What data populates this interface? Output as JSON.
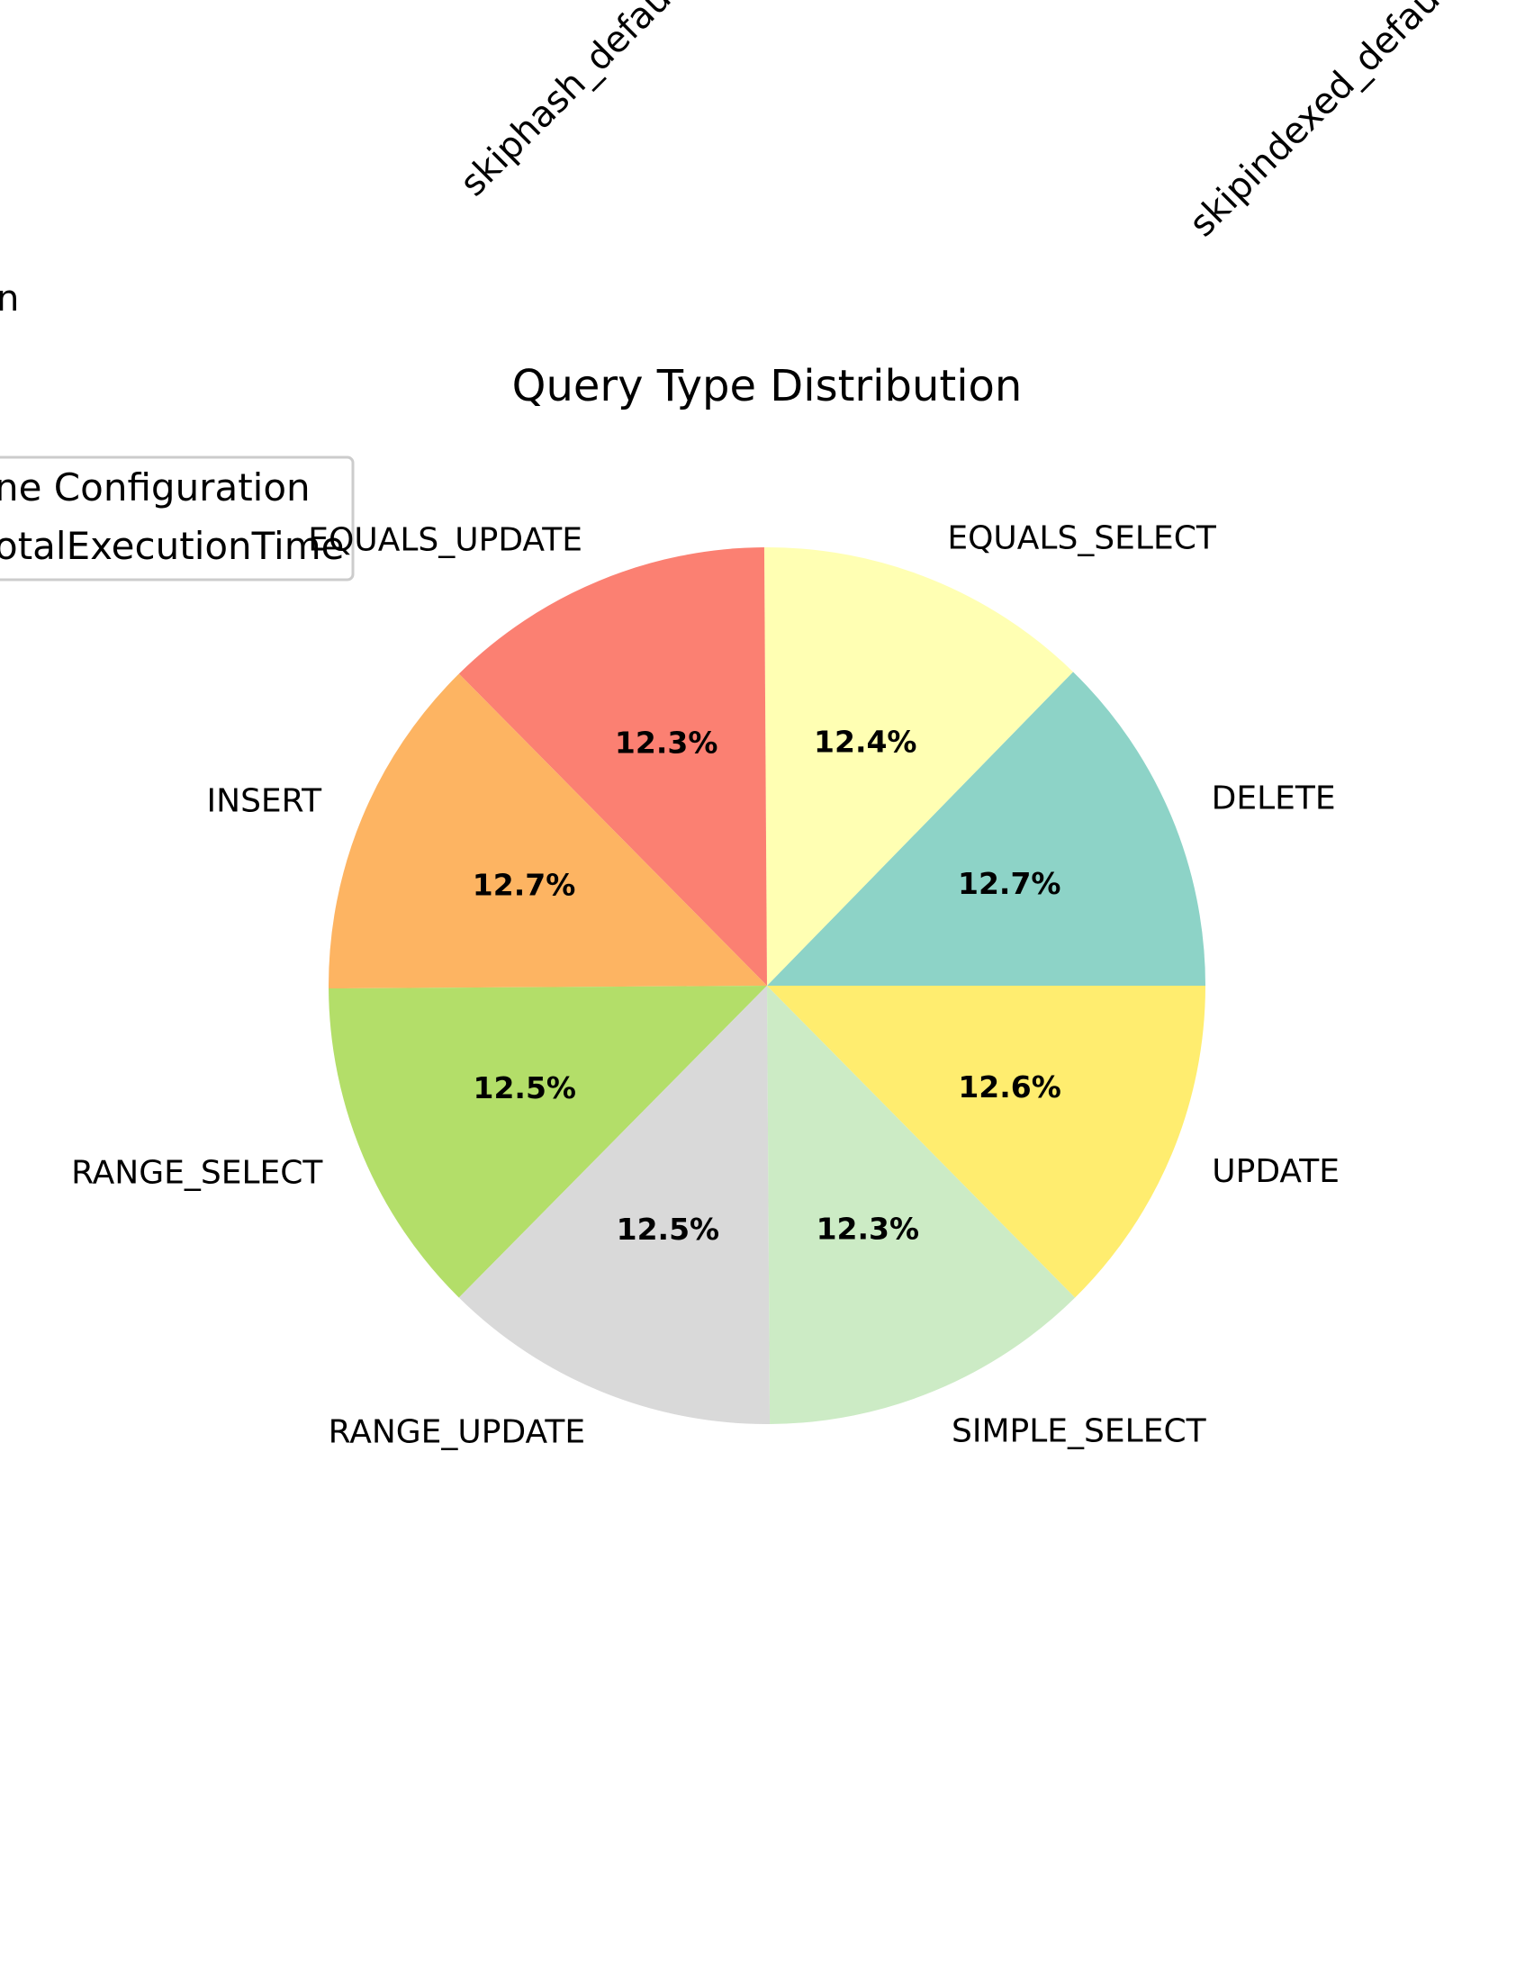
{
  "chart_data": {
    "type": "pie",
    "title": "Query Type Distribution",
    "categories": [
      "DELETE",
      "EQUALS_SELECT",
      "EQUALS_UPDATE",
      "INSERT",
      "RANGE_SELECT",
      "RANGE_UPDATE",
      "SIMPLE_SELECT",
      "UPDATE"
    ],
    "values": [
      12.7,
      12.4,
      12.3,
      12.7,
      12.5,
      12.5,
      12.3,
      12.6
    ],
    "value_labels": [
      "12.7%",
      "12.4%",
      "12.3%",
      "12.7%",
      "12.5%",
      "12.5%",
      "12.3%",
      "12.6%"
    ],
    "colors": [
      "#8dd3c7",
      "#ffffb3",
      "#fb8072",
      "#fdb462",
      "#b3de69",
      "#d9d9d9",
      "#ccebc5",
      "#ffed6f"
    ],
    "start_angle_deg": 0,
    "direction": "counterclockwise"
  },
  "background_fragments": {
    "rotated_labels": [
      "skiphash_defau",
      "skipindexed_defau"
    ],
    "partial_text": "n",
    "legend_lines": [
      "ne Configuration",
      "otalExecutionTime"
    ]
  }
}
